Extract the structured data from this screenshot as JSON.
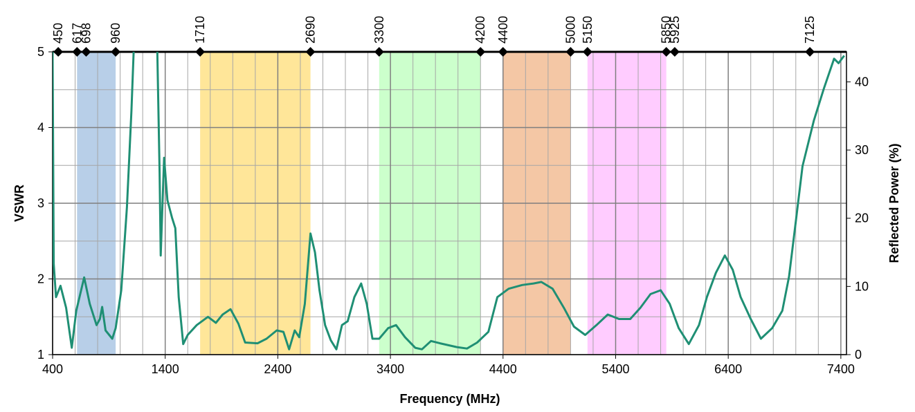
{
  "chart_data": {
    "type": "line",
    "xlabel": "Frequency (MHz)",
    "ylabel": "VSWR",
    "y2label": "Reflected Power (%)",
    "xlim": [
      400,
      7450
    ],
    "xticks": [
      400,
      1400,
      2400,
      3400,
      4400,
      5400,
      6400,
      7400
    ],
    "ylim": [
      1,
      5
    ],
    "yticks": [
      1,
      2,
      3,
      4,
      5
    ],
    "y2lim": [
      0,
      44.4
    ],
    "y2ticks": [
      0,
      10,
      20,
      30,
      40
    ],
    "grid": true,
    "minor_grid": true,
    "bands": [
      {
        "start": 617,
        "end": 960,
        "color": "#b8cfe8"
      },
      {
        "start": 1710,
        "end": 2690,
        "color": "#ffe699"
      },
      {
        "start": 3300,
        "end": 4200,
        "color": "#ccffcc"
      },
      {
        "start": 4400,
        "end": 5000,
        "color": "#f4c7a5"
      },
      {
        "start": 5150,
        "end": 5850,
        "color": "#ffccff"
      }
    ],
    "markers": [
      450,
      617,
      698,
      960,
      1710,
      2690,
      3300,
      4200,
      4400,
      5000,
      5150,
      5850,
      5925,
      7125
    ],
    "x": [
      400,
      410,
      430,
      470,
      520,
      570,
      610,
      680,
      730,
      790,
      820,
      840,
      870,
      930,
      960,
      1010,
      1060,
      1100,
      1120,
      1200,
      1330,
      1350,
      1360,
      1390,
      1420,
      1460,
      1490,
      1520,
      1560,
      1600,
      1680,
      1780,
      1850,
      1910,
      1980,
      2050,
      2110,
      2220,
      2300,
      2390,
      2450,
      2500,
      2550,
      2590,
      2640,
      2690,
      2730,
      2770,
      2820,
      2870,
      2920,
      2970,
      3020,
      3080,
      3140,
      3190,
      3240,
      3300,
      3380,
      3450,
      3530,
      3620,
      3680,
      3760,
      3840,
      3990,
      4080,
      4170,
      4270,
      4350,
      4450,
      4570,
      4670,
      4740,
      4840,
      4940,
      5030,
      5130,
      5230,
      5330,
      5430,
      5530,
      5620,
      5710,
      5800,
      5880,
      5960,
      6050,
      6140,
      6210,
      6290,
      6370,
      6440,
      6510,
      6600,
      6690,
      6790,
      6880,
      6940,
      7000,
      7060,
      7160,
      7250,
      7340,
      7380,
      7430
    ],
    "series": [
      {
        "color": "#1f8f74",
        "values": [
          5,
          2.2,
          1.76,
          1.91,
          1.62,
          1.09,
          1.58,
          2.02,
          1.67,
          1.39,
          1.47,
          1.63,
          1.32,
          1.21,
          1.35,
          1.85,
          2.95,
          4.22,
          5,
          null,
          5,
          3.4,
          2.31,
          3.6,
          3.04,
          2.81,
          2.67,
          1.76,
          1.14,
          1.26,
          1.39,
          1.5,
          1.42,
          1.53,
          1.6,
          1.41,
          1.16,
          1.15,
          1.21,
          1.32,
          1.3,
          1.07,
          1.32,
          1.23,
          1.67,
          2.6,
          2.35,
          1.85,
          1.39,
          1.19,
          1.07,
          1.39,
          1.44,
          1.76,
          1.94,
          1.67,
          1.21,
          1.21,
          1.35,
          1.39,
          1.23,
          1.09,
          1.07,
          1.18,
          1.15,
          1.1,
          1.08,
          1.16,
          1.3,
          1.76,
          1.87,
          1.92,
          1.94,
          1.96,
          1.87,
          1.62,
          1.37,
          1.26,
          1.39,
          1.53,
          1.47,
          1.47,
          1.62,
          1.8,
          1.85,
          1.67,
          1.35,
          1.14,
          1.39,
          1.76,
          2.08,
          2.31,
          2.12,
          1.76,
          1.47,
          1.21,
          1.35,
          1.58,
          2.03,
          2.76,
          3.49,
          4.09,
          4.52,
          4.91,
          4.85,
          4.95
        ]
      }
    ]
  }
}
